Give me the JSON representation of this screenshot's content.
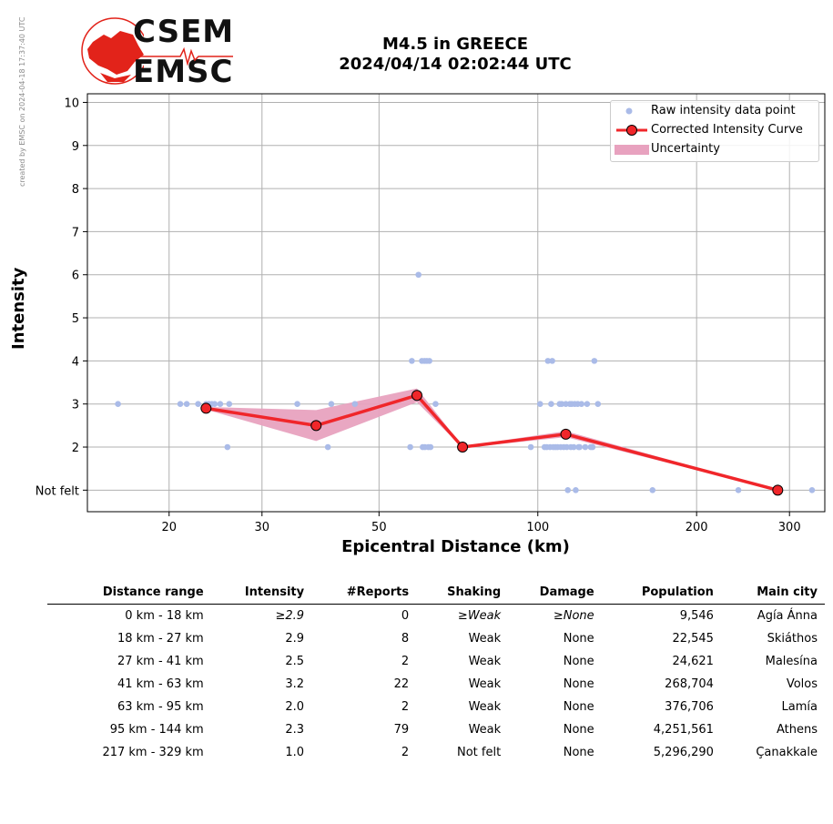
{
  "watermark": "created by EMSC on 2024-04-18 17:37:40 UTC",
  "logo": {
    "line1": "CSEM",
    "line2": "EMSC",
    "brand_color": "#e2231a"
  },
  "title": {
    "line1": "M4.5 in GREECE",
    "line2": "2024/04/14 02:02:44 UTC"
  },
  "chart_data": {
    "type": "scatter",
    "xlabel": "Epicentral Distance (km)",
    "ylabel": "Intensity",
    "xscale": "log",
    "xlim": [
      14,
      350
    ],
    "ylim": [
      0.5,
      10.2
    ],
    "x_ticks": [
      20,
      30,
      50,
      100,
      200,
      300
    ],
    "y_ticks": [
      {
        "value": 1,
        "label": "Not felt"
      },
      {
        "value": 2,
        "label": "2"
      },
      {
        "value": 3,
        "label": "3"
      },
      {
        "value": 4,
        "label": "4"
      },
      {
        "value": 5,
        "label": "5"
      },
      {
        "value": 6,
        "label": "6"
      },
      {
        "value": 7,
        "label": "7"
      },
      {
        "value": 8,
        "label": "8"
      },
      {
        "value": 9,
        "label": "9"
      },
      {
        "value": 10,
        "label": "10"
      }
    ],
    "grid": true,
    "legend_position": "top-right",
    "series": [
      {
        "name": "Raw intensity data point",
        "kind": "points",
        "color": "#aabbe8",
        "points": [
          [
            16,
            3
          ],
          [
            21,
            3
          ],
          [
            21.6,
            3
          ],
          [
            22.7,
            3
          ],
          [
            23.5,
            3
          ],
          [
            23.8,
            3
          ],
          [
            24.1,
            3
          ],
          [
            24.4,
            3
          ],
          [
            25,
            3
          ],
          [
            25.8,
            2
          ],
          [
            26,
            3
          ],
          [
            35,
            3
          ],
          [
            40,
            2
          ],
          [
            40.6,
            3
          ],
          [
            45,
            3
          ],
          [
            57.3,
            2
          ],
          [
            57.7,
            4
          ],
          [
            59.4,
            6
          ],
          [
            60.3,
            4
          ],
          [
            60.5,
            2
          ],
          [
            61,
            4
          ],
          [
            61.1,
            2
          ],
          [
            61.6,
            4
          ],
          [
            62,
            2
          ],
          [
            62.3,
            4
          ],
          [
            62.6,
            2
          ],
          [
            64,
            3
          ],
          [
            97,
            2
          ],
          [
            101,
            3
          ],
          [
            103,
            2
          ],
          [
            104,
            2
          ],
          [
            104.5,
            4
          ],
          [
            105.5,
            2
          ],
          [
            106,
            3
          ],
          [
            106.5,
            4
          ],
          [
            107,
            2
          ],
          [
            108,
            2
          ],
          [
            109,
            2
          ],
          [
            110,
            3
          ],
          [
            110.5,
            2
          ],
          [
            111,
            3
          ],
          [
            112,
            2
          ],
          [
            113,
            3
          ],
          [
            113.5,
            2
          ],
          [
            114,
            1
          ],
          [
            115,
            3
          ],
          [
            115.5,
            2
          ],
          [
            116,
            3
          ],
          [
            117,
            2
          ],
          [
            117.5,
            3
          ],
          [
            118,
            1
          ],
          [
            119,
            3
          ],
          [
            119.5,
            2
          ],
          [
            120,
            2
          ],
          [
            121,
            3
          ],
          [
            123,
            2
          ],
          [
            124,
            3
          ],
          [
            126,
            2
          ],
          [
            127,
            2
          ],
          [
            128,
            4
          ],
          [
            130,
            3
          ],
          [
            165,
            1
          ],
          [
            240,
            1
          ],
          [
            331,
            1
          ]
        ]
      },
      {
        "name": "Corrected Intensity Curve",
        "kind": "line",
        "color": "#f0262a",
        "points": [
          [
            23.5,
            2.9
          ],
          [
            38,
            2.5
          ],
          [
            59,
            3.2
          ],
          [
            72,
            2.0
          ],
          [
            113,
            2.3
          ],
          [
            285,
            1.0
          ]
        ]
      },
      {
        "name": "Uncertainty",
        "kind": "band",
        "color": "#e8a2bf",
        "lower": [
          [
            23.5,
            2.87
          ],
          [
            38,
            2.14
          ],
          [
            59,
            3.04
          ],
          [
            72,
            1.98
          ],
          [
            113,
            2.23
          ],
          [
            285,
            0.99
          ]
        ],
        "upper": [
          [
            23.5,
            2.93
          ],
          [
            38,
            2.86
          ],
          [
            59,
            3.36
          ],
          [
            72,
            2.02
          ],
          [
            113,
            2.37
          ],
          [
            285,
            1.01
          ]
        ]
      }
    ]
  },
  "table": {
    "headers": [
      "Distance range",
      "Intensity",
      "#Reports",
      "Shaking",
      "Damage",
      "Population",
      "Main city"
    ],
    "rows": [
      [
        "0 km -   18 km",
        "≥2.9",
        "0",
        "≥Weak",
        "≥None",
        "9,546",
        "Agía Ánna"
      ],
      [
        "18 km -   27 km",
        "2.9",
        "8",
        "Weak",
        "None",
        "22,545",
        "Skiáthos"
      ],
      [
        "27 km -   41 km",
        "2.5",
        "2",
        "Weak",
        "None",
        "24,621",
        "Malesína"
      ],
      [
        "41 km -   63 km",
        "3.2",
        "22",
        "Weak",
        "None",
        "268,704",
        "Volos"
      ],
      [
        "63 km -   95 km",
        "2.0",
        "2",
        "Weak",
        "None",
        "376,706",
        "Lamía"
      ],
      [
        "95 km -  144 km",
        "2.3",
        "79",
        "Weak",
        "None",
        "4,251,561",
        "Athens"
      ],
      [
        "217 km -  329 km",
        "1.0",
        "2",
        "Not felt",
        "None",
        "5,296,290",
        "Çanakkale"
      ]
    ]
  }
}
